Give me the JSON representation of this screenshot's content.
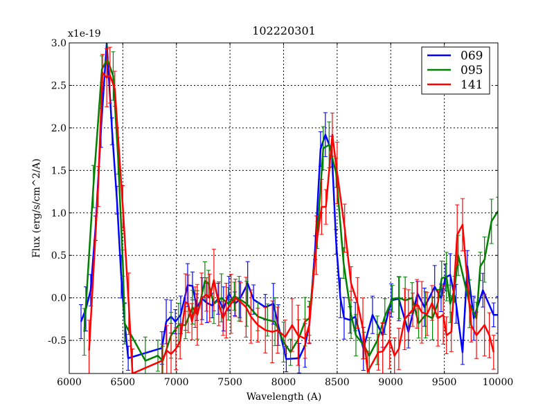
{
  "chart_data": {
    "type": "line",
    "title": "102220301",
    "xlabel": "Wavelength (A)",
    "ylabel": "Flux (erg/s/cm^2/A)",
    "y_offset_label": "x1e-19",
    "xlim": [
      6000,
      10000
    ],
    "ylim": [
      -0.89,
      3.0
    ],
    "xticks": [
      "6000",
      "6500",
      "7000",
      "7500",
      "8000",
      "8500",
      "9000",
      "9500",
      "10000"
    ],
    "xtick_values": [
      6000,
      6500,
      7000,
      7500,
      8000,
      8500,
      9000,
      9500,
      10000
    ],
    "yticks": [
      "-0.5",
      "0.0",
      "0.5",
      "1.0",
      "1.5",
      "2.0",
      "2.5",
      "3.0"
    ],
    "ytick_values": [
      -0.5,
      0,
      0.5,
      1.0,
      1.5,
      2.0,
      2.5,
      3.0
    ],
    "grid": true,
    "legend_position": "top-right",
    "series": [
      {
        "name": "069",
        "color": "#0000ff",
        "yerr": 0.2,
        "x": [
          6110,
          6155,
          6200,
          6245,
          6297,
          6350,
          6400,
          6445,
          6485,
          6517,
          6550,
          6865,
          6905,
          6950,
          6990,
          7040,
          7105,
          7150,
          7190,
          7240,
          7285,
          7335,
          7390,
          7440,
          7490,
          7545,
          7590,
          7665,
          7720,
          7830,
          7905,
          7950,
          8025,
          8145,
          8200,
          8240,
          8295,
          8345,
          8390,
          8450,
          8490,
          8530,
          8565,
          8620,
          8670,
          8745,
          8830,
          8925,
          9005,
          9075,
          9165,
          9250,
          9315,
          9410,
          9470,
          9510,
          9555,
          9610,
          9670,
          9715,
          9775,
          9860,
          9960,
          10000
        ],
        "y": [
          -0.28,
          -0.13,
          0.09,
          0.82,
          2.0,
          3.0,
          1.96,
          1.15,
          0.25,
          -0.29,
          -0.71,
          -0.59,
          -0.28,
          -0.22,
          -0.28,
          -0.2,
          0.15,
          0.14,
          -0.11,
          -0.01,
          -0.06,
          -0.09,
          -0.01,
          -0.13,
          0.05,
          -0.07,
          -0.02,
          0.17,
          -0.02,
          -0.11,
          -0.07,
          -0.32,
          -0.72,
          -0.71,
          -0.56,
          -0.32,
          0.59,
          1.75,
          1.92,
          1.72,
          0.66,
          0.0,
          -0.24,
          -0.26,
          -0.22,
          -0.6,
          -0.2,
          -0.44,
          -0.03,
          -0.01,
          -0.4,
          0.05,
          -0.11,
          0.13,
          0.0,
          0.24,
          0.27,
          -0.07,
          -0.64,
          0.37,
          -0.24,
          0.09,
          -0.2,
          -0.2
        ]
      },
      {
        "name": "095",
        "color": "#008000",
        "yerr": 0.22,
        "x": [
          6140,
          6225,
          6305,
          6355,
          6410,
          6455,
          6500,
          6517,
          6710,
          6827,
          6873,
          6950,
          7020,
          7085,
          7150,
          7195,
          7266,
          7300,
          7350,
          7420,
          7485,
          7540,
          7585,
          7655,
          7760,
          7850,
          7920,
          8000,
          8065,
          8140,
          8200,
          8240,
          8315,
          8370,
          8425,
          8490,
          8560,
          8630,
          8675,
          8750,
          8800,
          8875,
          8945,
          9015,
          9080,
          9135,
          9200,
          9260,
          9325,
          9390,
          9440,
          9475,
          9520,
          9555,
          9595,
          9630,
          9735,
          9800,
          9835,
          9875,
          9940,
          10000
        ],
        "y": [
          -0.4,
          1.31,
          2.69,
          2.81,
          2.61,
          1.67,
          0.41,
          -0.3,
          -0.74,
          -0.68,
          -0.74,
          -0.44,
          -0.32,
          -0.32,
          -0.11,
          -0.2,
          0.2,
          0.17,
          -0.07,
          0.0,
          -0.07,
          0.02,
          -0.01,
          -0.07,
          -0.22,
          -0.26,
          -0.28,
          -0.52,
          -0.64,
          -0.48,
          -0.28,
          -0.24,
          0.74,
          1.76,
          1.8,
          1.47,
          0.41,
          -0.2,
          -0.44,
          -0.56,
          -0.68,
          -0.5,
          -0.22,
          -0.01,
          0.0,
          -0.03,
          0.0,
          -0.3,
          -0.2,
          -0.24,
          -0.06,
          0.23,
          0.25,
          -0.07,
          0.1,
          0.5,
          -0.07,
          -0.24,
          0.37,
          0.45,
          0.9,
          1.02
        ]
      },
      {
        "name": "141",
        "color": "#ff0000",
        "yerr": 0.28,
        "x": [
          6185,
          6270,
          6310,
          6350,
          6380,
          6425,
          6500,
          6555,
          6590,
          6865,
          6910,
          6950,
          6995,
          7035,
          7085,
          7110,
          7145,
          7175,
          7195,
          7235,
          7280,
          7310,
          7350,
          7395,
          7435,
          7465,
          7510,
          7550,
          7600,
          7650,
          7695,
          7760,
          7830,
          7895,
          7945,
          8015,
          8080,
          8135,
          8200,
          8240,
          8305,
          8355,
          8395,
          8455,
          8500,
          8570,
          8630,
          8690,
          8740,
          8785,
          8885,
          8925,
          8990,
          9035,
          9075,
          9130,
          9165,
          9205,
          9245,
          9290,
          9340,
          9385,
          9440,
          9490,
          9520,
          9565,
          9620,
          9670,
          9750,
          9800,
          9875,
          9920,
          9960
        ],
        "y": [
          -0.62,
          1.31,
          2.65,
          2.59,
          2.62,
          2.46,
          1.07,
          -0.07,
          -0.89,
          -0.74,
          -0.62,
          -0.66,
          -0.6,
          -0.51,
          -0.05,
          -0.07,
          -0.28,
          -0.11,
          -0.2,
          -0.01,
          0.04,
          0.0,
          0.21,
          -0.07,
          -0.24,
          -0.15,
          -0.07,
          0.0,
          -0.05,
          -0.11,
          -0.22,
          -0.32,
          -0.38,
          -0.4,
          -0.38,
          -0.46,
          -0.32,
          -0.44,
          -0.48,
          -0.32,
          0.62,
          1.07,
          1.07,
          1.92,
          1.47,
          0.82,
          0.17,
          -0.06,
          -0.36,
          -0.87,
          -0.64,
          -0.63,
          -0.5,
          -0.68,
          -0.6,
          -0.25,
          -0.2,
          -0.14,
          -0.07,
          -0.17,
          -0.19,
          -0.06,
          -0.24,
          -0.2,
          -0.44,
          -0.4,
          0.74,
          0.86,
          -0.32,
          -0.44,
          -0.32,
          -0.44,
          -0.64
        ]
      }
    ]
  }
}
